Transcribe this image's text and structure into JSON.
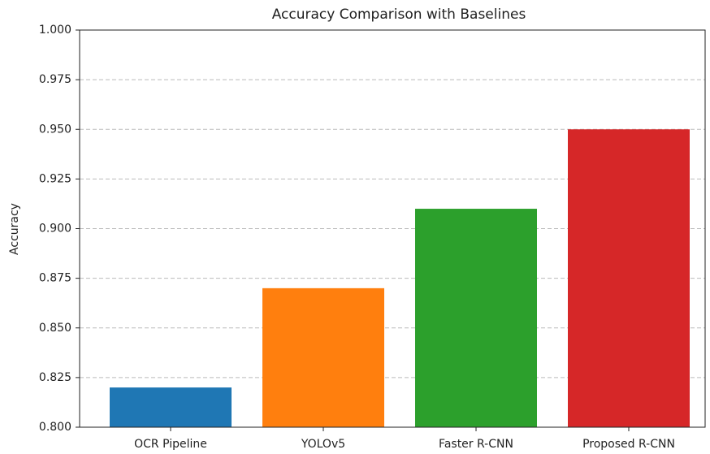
{
  "chart_data": {
    "type": "bar",
    "title": "Accuracy Comparison with Baselines",
    "y_label": "Accuracy",
    "categories": [
      "OCR Pipeline",
      "YOLOv5",
      "Faster R-CNN",
      "Proposed R-CNN"
    ],
    "values": [
      0.82,
      0.87,
      0.91,
      0.95
    ],
    "colors": [
      "#1f77b4",
      "#ff7f0e",
      "#2ca02c",
      "#d62728"
    ],
    "ylim": [
      0.8,
      1.0
    ],
    "yticks": [
      {
        "value": 0.8,
        "label": "0.800"
      },
      0.825,
      {
        "value": 0.85,
        "label": "0.850"
      },
      0.875,
      {
        "value": 0.9,
        "label": "0.900"
      },
      0.925,
      {
        "value": 0.95,
        "label": "0.950"
      },
      0.975,
      {
        "value": 1.0,
        "label": "1.000"
      }
    ],
    "grid": true
  }
}
